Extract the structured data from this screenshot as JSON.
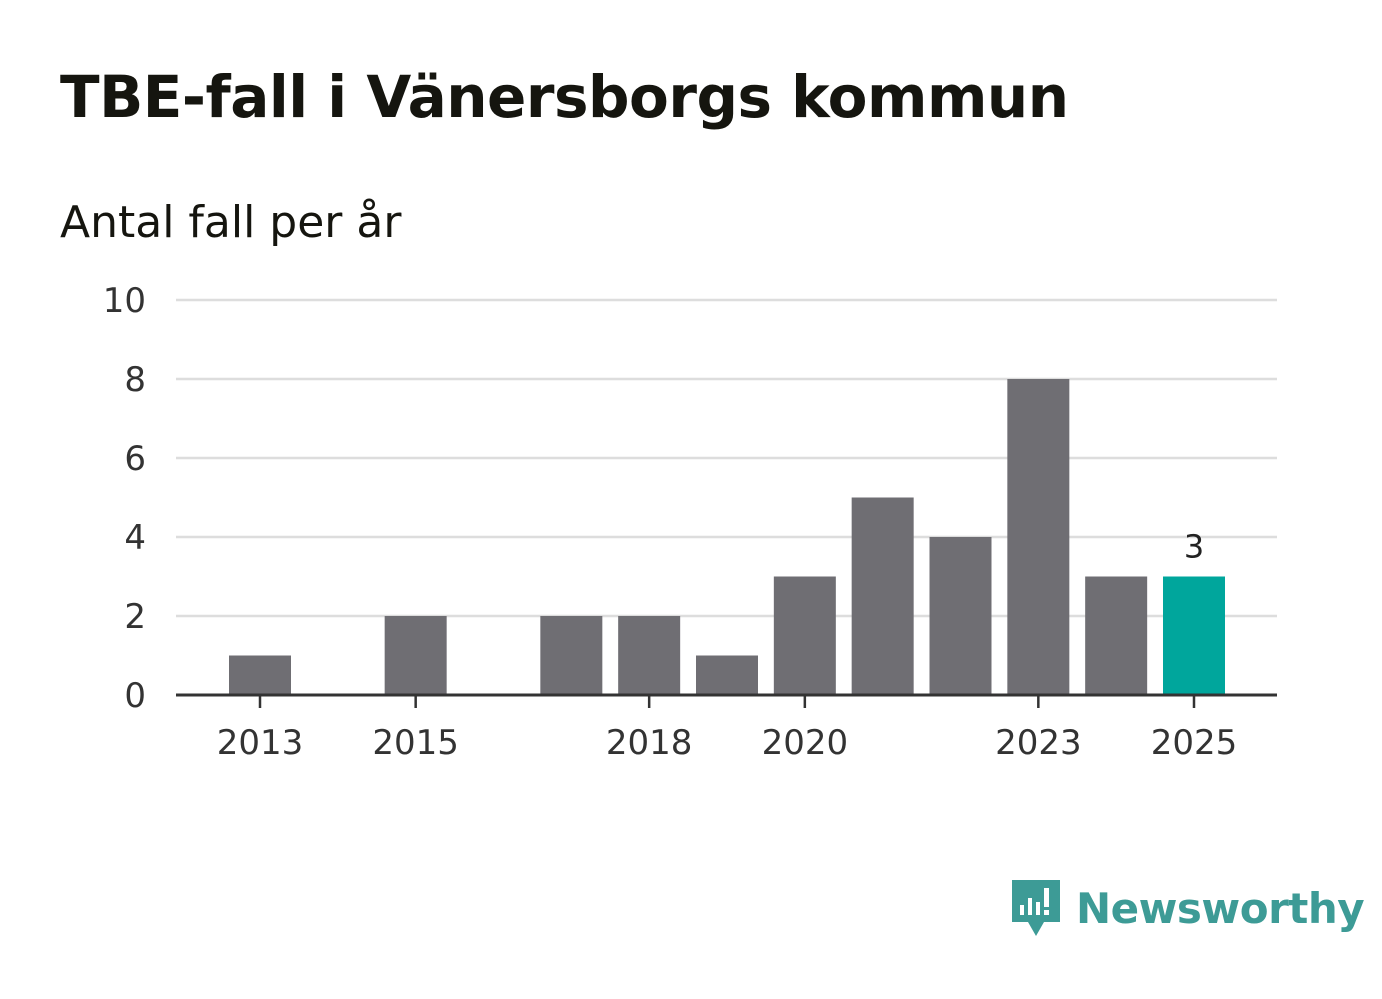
{
  "title": "TBE-fall i Vänersborgs kommun",
  "subtitle": "Antal fall per år",
  "brand": {
    "name": "Newsworthy",
    "icon": "newsworthy-logo-icon",
    "color": "#3d9b96"
  },
  "colors": {
    "bar": "#6f6e73",
    "highlight": "#00a69c",
    "grid": "#dddddd",
    "axis": "#333333"
  },
  "chart_data": {
    "type": "bar",
    "title": "TBE-fall i Vänersborgs kommun",
    "ylabel": "Antal fall per år",
    "xlabel": "",
    "categories": [
      "2013",
      "2014",
      "2015",
      "2016",
      "2017",
      "2018",
      "2019",
      "2020",
      "2021",
      "2022",
      "2023",
      "2024",
      "2025"
    ],
    "values": [
      1,
      0,
      2,
      0,
      2,
      2,
      1,
      3,
      5,
      4,
      8,
      3,
      3
    ],
    "highlight_index": 12,
    "value_labels": [
      {
        "index": 12,
        "text": "3"
      }
    ],
    "x_tick_labels": [
      "2013",
      "2015",
      "2018",
      "2020",
      "2023",
      "2025"
    ],
    "ylim": [
      0,
      10
    ],
    "y_ticks": [
      0,
      2,
      4,
      6,
      8,
      10
    ],
    "grid": true
  }
}
